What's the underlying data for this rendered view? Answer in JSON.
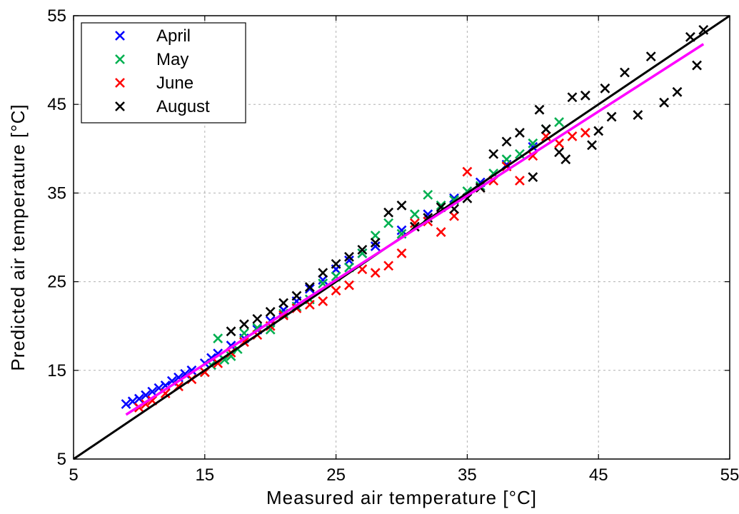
{
  "chart_data": {
    "type": "scatter",
    "title": "",
    "xlabel": "Measured air temperature [°C]",
    "ylabel": "Predicted air temperature [°C]",
    "xlim": [
      5,
      55
    ],
    "ylim": [
      5,
      55
    ],
    "xticks": [
      "5",
      "15",
      "25",
      "35",
      "45",
      "55"
    ],
    "yticks": [
      "5",
      "15",
      "25",
      "35",
      "45",
      "55"
    ],
    "grid": true,
    "legend_position": "top-left",
    "series": [
      {
        "name": "April",
        "color": "#0000ff",
        "marker": "x",
        "x": [
          9.0,
          9.5,
          10.0,
          10.5,
          11.0,
          11.5,
          12.0,
          12.5,
          13.0,
          13.5,
          14.0,
          15.0,
          15.5,
          16.0,
          17.0,
          18.0,
          19.0,
          20.0,
          21.0,
          22.0,
          23.0,
          24.0,
          25.0,
          26.0,
          27.0,
          28.0,
          30.0,
          32.0,
          34.0,
          36.0,
          38.0,
          40.0
        ],
        "y": [
          11.2,
          11.5,
          11.8,
          12.2,
          12.6,
          13.0,
          13.3,
          13.8,
          14.2,
          14.6,
          15.0,
          15.8,
          16.4,
          16.9,
          17.8,
          18.6,
          19.6,
          20.6,
          21.8,
          22.8,
          24.2,
          25.2,
          26.4,
          27.4,
          28.2,
          29.0,
          30.8,
          32.6,
          34.4,
          36.2,
          38.2,
          40.2
        ]
      },
      {
        "name": "May",
        "color": "#00b050",
        "marker": "x",
        "x": [
          15.0,
          15.5,
          16.0,
          16.5,
          17.0,
          17.5,
          18.0,
          19.0,
          20.0,
          21.0,
          22.0,
          23.0,
          24.0,
          25.0,
          26.0,
          27.0,
          28.0,
          29.0,
          30.0,
          31.0,
          32.0,
          33.0,
          34.0,
          35.0,
          36.0,
          37.0,
          38.0,
          39.0,
          40.0,
          41.0,
          42.0
        ],
        "y": [
          14.8,
          15.6,
          18.6,
          16.2,
          16.6,
          17.4,
          19.2,
          19.8,
          19.6,
          21.4,
          22.2,
          23.0,
          24.8,
          25.6,
          26.6,
          28.2,
          30.2,
          31.6,
          30.4,
          32.6,
          34.8,
          33.6,
          34.2,
          35.2,
          35.8,
          37.2,
          38.8,
          39.4,
          40.6,
          42.2,
          43.0
        ]
      },
      {
        "name": "June",
        "color": "#ff0000",
        "marker": "x",
        "x": [
          10.0,
          10.5,
          11.0,
          12.0,
          13.0,
          14.0,
          15.0,
          16.0,
          17.0,
          18.0,
          19.0,
          20.0,
          21.0,
          22.0,
          23.0,
          24.0,
          25.0,
          26.0,
          27.0,
          28.0,
          29.0,
          30.0,
          31.0,
          32.0,
          33.0,
          34.0,
          35.0,
          36.0,
          37.0,
          38.0,
          39.0,
          40.0,
          41.0,
          42.0,
          43.0,
          44.0
        ],
        "y": [
          10.8,
          11.2,
          11.6,
          12.4,
          13.2,
          14.0,
          14.8,
          15.8,
          17.0,
          18.2,
          19.0,
          20.0,
          21.2,
          22.0,
          22.4,
          22.8,
          24.0,
          24.6,
          26.4,
          26.0,
          26.8,
          28.2,
          31.6,
          31.8,
          30.6,
          32.4,
          37.4,
          35.6,
          36.4,
          38.0,
          36.4,
          39.2,
          41.4,
          40.6,
          41.4,
          41.8
        ]
      },
      {
        "name": "August",
        "color": "#000000",
        "marker": "x",
        "x": [
          17.0,
          18.0,
          19.0,
          20.0,
          21.0,
          22.0,
          23.0,
          24.0,
          25.0,
          26.0,
          27.0,
          28.0,
          29.0,
          30.0,
          31.0,
          32.0,
          33.0,
          34.0,
          35.0,
          36.0,
          37.0,
          38.0,
          39.0,
          40.0,
          40.5,
          41.0,
          42.0,
          42.5,
          43.0,
          44.0,
          44.5,
          45.0,
          45.5,
          46.0,
          47.0,
          48.0,
          49.0,
          50.0,
          51.0,
          52.0,
          52.5,
          53.0
        ],
        "y": [
          19.4,
          20.2,
          20.8,
          21.6,
          22.6,
          23.4,
          24.4,
          26.0,
          27.0,
          27.8,
          28.6,
          29.4,
          32.8,
          33.6,
          31.2,
          32.2,
          33.4,
          33.2,
          34.4,
          35.6,
          39.4,
          40.8,
          41.8,
          36.8,
          44.4,
          42.2,
          39.6,
          38.8,
          45.8,
          46.0,
          40.4,
          42.0,
          46.8,
          43.6,
          48.6,
          43.8,
          50.4,
          45.2,
          46.4,
          52.6,
          49.4,
          53.4
        ]
      }
    ],
    "lines": [
      {
        "name": "1:1 line",
        "color": "#000000",
        "x": [
          5,
          55
        ],
        "y": [
          5,
          55
        ]
      },
      {
        "name": "regression fit",
        "color": "#ff00ff",
        "x": [
          9,
          53
        ],
        "y": [
          10.0,
          51.8
        ]
      }
    ]
  }
}
